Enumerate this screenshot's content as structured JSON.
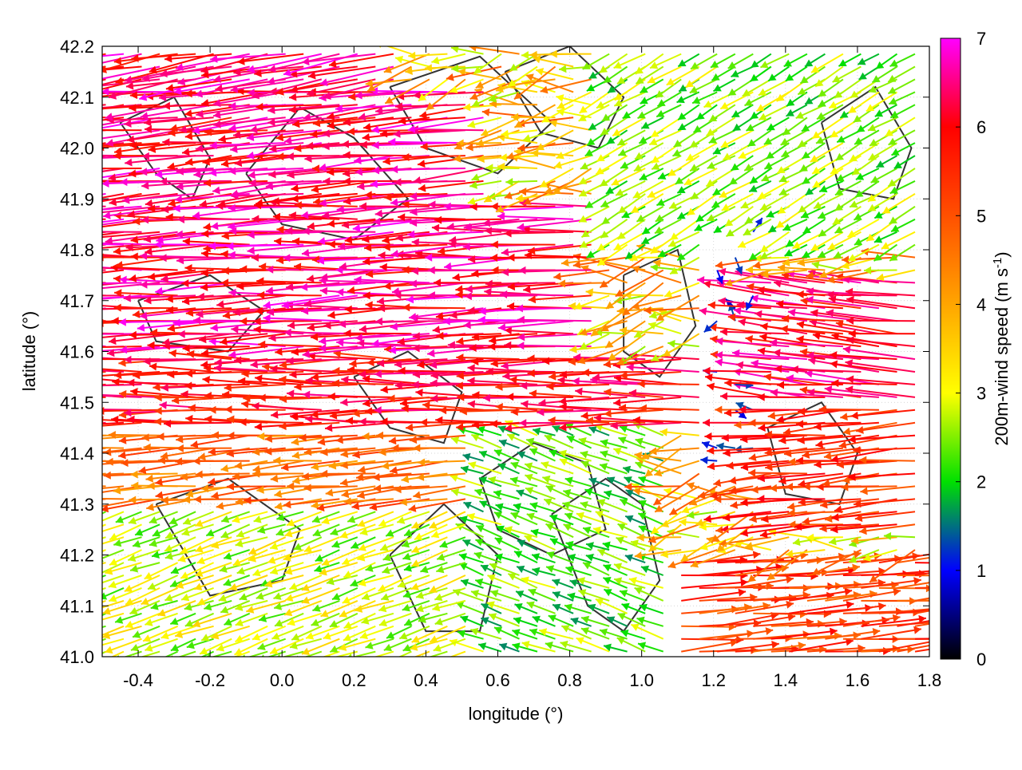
{
  "chart_data": {
    "type": "vector-field",
    "xlabel": "longitude (°)",
    "ylabel": "latitude (°)",
    "colorbar_label_main": "200m-wind speed (m s",
    "colorbar_label_sup": "-1",
    "colorbar_label_end": ")",
    "xlim": [
      -0.5,
      1.8
    ],
    "ylim": [
      41.0,
      42.2
    ],
    "x_ticks": [
      {
        "v": -0.4,
        "label": "-0.4"
      },
      {
        "v": -0.2,
        "label": "-0.2"
      },
      {
        "v": 0.0,
        "label": "0.0"
      },
      {
        "v": 0.2,
        "label": "0.2"
      },
      {
        "v": 0.4,
        "label": "0.4"
      },
      {
        "v": 0.6,
        "label": "0.6"
      },
      {
        "v": 0.8,
        "label": "0.8"
      },
      {
        "v": 1.0,
        "label": "1.0"
      },
      {
        "v": 1.2,
        "label": "1.2"
      },
      {
        "v": 1.4,
        "label": "1.4"
      },
      {
        "v": 1.6,
        "label": "1.6"
      },
      {
        "v": 1.8,
        "label": "1.8"
      }
    ],
    "y_ticks": [
      {
        "v": 41.0,
        "label": "41.0"
      },
      {
        "v": 41.1,
        "label": "41.1"
      },
      {
        "v": 41.2,
        "label": "41.2"
      },
      {
        "v": 41.3,
        "label": "41.3"
      },
      {
        "v": 41.4,
        "label": "41.4"
      },
      {
        "v": 41.5,
        "label": "41.5"
      },
      {
        "v": 41.6,
        "label": "41.6"
      },
      {
        "v": 41.7,
        "label": "41.7"
      },
      {
        "v": 41.8,
        "label": "41.8"
      },
      {
        "v": 41.9,
        "label": "41.9"
      },
      {
        "v": 42.0,
        "label": "42.0"
      },
      {
        "v": 42.1,
        "label": "42.1"
      },
      {
        "v": 42.2,
        "label": "42.2"
      }
    ],
    "colorbar": {
      "range": [
        0,
        7
      ],
      "ticks": [
        {
          "v": 0,
          "label": "0"
        },
        {
          "v": 1,
          "label": "1"
        },
        {
          "v": 2,
          "label": "2"
        },
        {
          "v": 3,
          "label": "3"
        },
        {
          "v": 4,
          "label": "4"
        },
        {
          "v": 5,
          "label": "5"
        },
        {
          "v": 6,
          "label": "6"
        },
        {
          "v": 7,
          "label": "7"
        }
      ],
      "stops": [
        {
          "v": 0,
          "color": "#000000"
        },
        {
          "v": 1,
          "color": "#0000ff"
        },
        {
          "v": 2,
          "color": "#00e000"
        },
        {
          "v": 3,
          "color": "#ffff00"
        },
        {
          "v": 4,
          "color": "#ffa500"
        },
        {
          "v": 5,
          "color": "#ff5000"
        },
        {
          "v": 6,
          "color": "#ff0000"
        },
        {
          "v": 7,
          "color": "#ff00ff"
        }
      ]
    },
    "grid": "dotted",
    "contour_color": "#333333",
    "wind_bands": [
      {
        "lat": [
          42.12,
          42.2
        ],
        "lon": [
          -0.5,
          0.35
        ],
        "speed": 7.0,
        "dir": 190
      },
      {
        "lat": [
          41.9,
          42.12
        ],
        "lon": [
          -0.5,
          0.6
        ],
        "speed": 7.0,
        "dir": 185
      },
      {
        "lat": [
          41.6,
          41.9
        ],
        "lon": [
          -0.5,
          0.9
        ],
        "speed": 7.0,
        "dir": 182
      },
      {
        "lat": [
          41.45,
          41.6
        ],
        "lon": [
          -0.5,
          1.2
        ],
        "speed": 6.6,
        "dir": 180
      },
      {
        "lat": [
          41.3,
          41.45
        ],
        "lon": [
          -0.5,
          0.6
        ],
        "speed": 5.4,
        "dir": 185
      },
      {
        "lat": [
          41.0,
          41.3
        ],
        "lon": [
          -0.5,
          0.55
        ],
        "speed": 3.5,
        "dir": 200
      },
      {
        "lat": [
          41.5,
          41.75
        ],
        "lon": [
          1.35,
          1.8
        ],
        "speed": 6.8,
        "dir": 175
      },
      {
        "lat": [
          41.25,
          41.5
        ],
        "lon": [
          1.35,
          1.8
        ],
        "speed": 6.2,
        "dir": 185
      },
      {
        "lat": [
          41.0,
          41.2
        ],
        "lon": [
          1.1,
          1.8
        ],
        "speed": 6.0,
        "dir": 5
      },
      {
        "lat": [
          41.8,
          42.2
        ],
        "lon": [
          0.9,
          1.8
        ],
        "speed": 3.2,
        "dir": 210
      },
      {
        "lat": [
          41.0,
          41.45
        ],
        "lon": [
          0.55,
          1.1
        ],
        "speed": 3.0,
        "dir": 160
      }
    ],
    "calm_zone": {
      "lat": [
        41.35,
        41.85
      ],
      "lon": [
        1.17,
        1.33
      ],
      "speed": 0.8
    },
    "contours": [
      [
        [
          -0.45,
          42.05
        ],
        [
          -0.3,
          42.1
        ],
        [
          -0.2,
          41.98
        ],
        [
          -0.25,
          41.9
        ],
        [
          -0.35,
          41.95
        ],
        [
          -0.45,
          42.05
        ]
      ],
      [
        [
          -0.1,
          41.95
        ],
        [
          0.05,
          42.08
        ],
        [
          0.2,
          42.02
        ],
        [
          0.35,
          41.9
        ],
        [
          0.2,
          41.82
        ],
        [
          0.0,
          41.85
        ],
        [
          -0.1,
          41.95
        ]
      ],
      [
        [
          0.3,
          42.12
        ],
        [
          0.55,
          42.18
        ],
        [
          0.75,
          42.05
        ],
        [
          0.6,
          41.95
        ],
        [
          0.4,
          42.0
        ],
        [
          0.3,
          42.12
        ]
      ],
      [
        [
          0.62,
          42.15
        ],
        [
          0.8,
          42.2
        ],
        [
          0.95,
          42.1
        ],
        [
          0.88,
          42.0
        ],
        [
          0.72,
          42.03
        ],
        [
          0.62,
          42.15
        ]
      ],
      [
        [
          0.2,
          41.55
        ],
        [
          0.35,
          41.6
        ],
        [
          0.5,
          41.52
        ],
        [
          0.45,
          41.42
        ],
        [
          0.3,
          41.45
        ],
        [
          0.2,
          41.55
        ]
      ],
      [
        [
          0.55,
          41.35
        ],
        [
          0.7,
          41.42
        ],
        [
          0.85,
          41.38
        ],
        [
          0.9,
          41.25
        ],
        [
          0.75,
          41.2
        ],
        [
          0.6,
          41.25
        ],
        [
          0.55,
          41.35
        ]
      ],
      [
        [
          0.75,
          41.28
        ],
        [
          0.9,
          41.35
        ],
        [
          1.0,
          41.3
        ],
        [
          1.05,
          41.15
        ],
        [
          0.95,
          41.05
        ],
        [
          0.85,
          41.1
        ],
        [
          0.75,
          41.28
        ]
      ],
      [
        [
          0.95,
          41.75
        ],
        [
          1.1,
          41.8
        ],
        [
          1.15,
          41.65
        ],
        [
          1.05,
          41.55
        ],
        [
          0.95,
          41.6
        ],
        [
          0.95,
          41.75
        ]
      ],
      [
        [
          1.35,
          41.45
        ],
        [
          1.5,
          41.5
        ],
        [
          1.6,
          41.4
        ],
        [
          1.55,
          41.3
        ],
        [
          1.4,
          41.32
        ],
        [
          1.35,
          41.45
        ]
      ],
      [
        [
          1.5,
          42.05
        ],
        [
          1.65,
          42.12
        ],
        [
          1.75,
          42.0
        ],
        [
          1.7,
          41.9
        ],
        [
          1.55,
          41.92
        ],
        [
          1.5,
          42.05
        ]
      ],
      [
        [
          -0.35,
          41.3
        ],
        [
          -0.15,
          41.35
        ],
        [
          0.05,
          41.25
        ],
        [
          0.0,
          41.15
        ],
        [
          -0.2,
          41.12
        ],
        [
          -0.35,
          41.3
        ]
      ],
      [
        [
          0.3,
          41.2
        ],
        [
          0.45,
          41.3
        ],
        [
          0.6,
          41.2
        ],
        [
          0.55,
          41.05
        ],
        [
          0.4,
          41.05
        ],
        [
          0.3,
          41.2
        ]
      ],
      [
        [
          -0.4,
          41.7
        ],
        [
          -0.2,
          41.75
        ],
        [
          -0.05,
          41.68
        ],
        [
          -0.15,
          41.6
        ],
        [
          -0.35,
          41.62
        ],
        [
          -0.4,
          41.7
        ]
      ]
    ]
  }
}
